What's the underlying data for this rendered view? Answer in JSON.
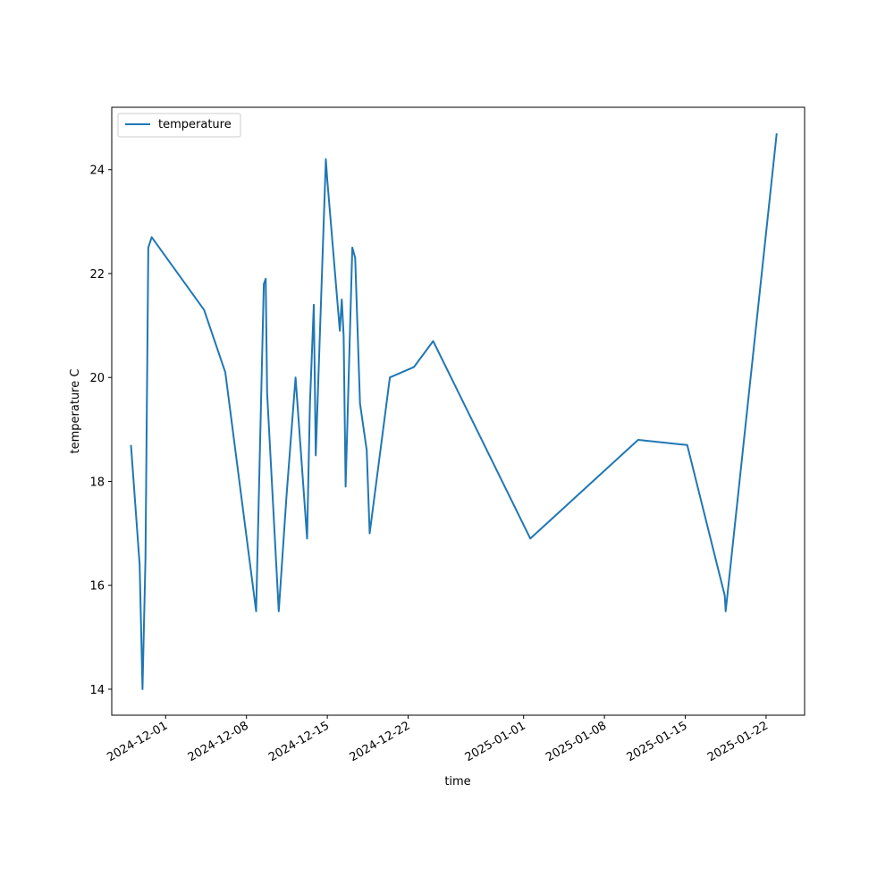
{
  "chart_data": {
    "type": "line",
    "xlabel": "time",
    "ylabel": "temperature C",
    "x_ticks": [
      "2024-12-01",
      "2024-12-08",
      "2024-12-15",
      "2024-12-22",
      "2025-01-01",
      "2025-01-08",
      "2025-01-15",
      "2025-01-22"
    ],
    "y_ticks": [
      14,
      16,
      18,
      20,
      22,
      24
    ],
    "xlim": [
      "2024-11-26T08:00",
      "2025-01-25T08:00"
    ],
    "ylim": [
      13.5,
      25.2
    ],
    "grid": false,
    "legend": {
      "position": "upper-left",
      "entries": [
        "temperature"
      ]
    },
    "series": [
      {
        "name": "temperature",
        "color": "#1f77b4",
        "points": [
          {
            "x": "2024-11-28T00:00",
            "y": 18.7
          },
          {
            "x": "2024-11-28T18:00",
            "y": 16.4
          },
          {
            "x": "2024-11-29T00:00",
            "y": 14.0
          },
          {
            "x": "2024-11-29T06:00",
            "y": 16.5
          },
          {
            "x": "2024-11-29T12:00",
            "y": 22.5
          },
          {
            "x": "2024-11-29T19:00",
            "y": 22.7
          },
          {
            "x": "2024-12-04T08:00",
            "y": 21.3
          },
          {
            "x": "2024-12-06T04:00",
            "y": 20.1
          },
          {
            "x": "2024-12-08T20:00",
            "y": 15.5
          },
          {
            "x": "2024-12-09T12:00",
            "y": 21.8
          },
          {
            "x": "2024-12-09T16:00",
            "y": 21.9
          },
          {
            "x": "2024-12-09T19:00",
            "y": 19.7
          },
          {
            "x": "2024-12-10T19:00",
            "y": 15.5
          },
          {
            "x": "2024-12-11T11:00",
            "y": 17.7
          },
          {
            "x": "2024-12-12T06:00",
            "y": 20.0
          },
          {
            "x": "2024-12-13T06:00",
            "y": 16.9
          },
          {
            "x": "2024-12-13T12:00",
            "y": 19.5
          },
          {
            "x": "2024-12-13T20:00",
            "y": 21.4
          },
          {
            "x": "2024-12-14T00:00",
            "y": 18.5
          },
          {
            "x": "2024-12-14T21:00",
            "y": 24.2
          },
          {
            "x": "2024-12-15T00:00",
            "y": 23.8
          },
          {
            "x": "2024-12-16T02:00",
            "y": 20.9
          },
          {
            "x": "2024-12-16T06:00",
            "y": 21.5
          },
          {
            "x": "2024-12-16T10:00",
            "y": 20.8
          },
          {
            "x": "2024-12-16T14:00",
            "y": 17.9
          },
          {
            "x": "2024-12-17T04:00",
            "y": 22.5
          },
          {
            "x": "2024-12-17T10:00",
            "y": 22.3
          },
          {
            "x": "2024-12-17T20:00",
            "y": 19.5
          },
          {
            "x": "2024-12-18T10:00",
            "y": 18.6
          },
          {
            "x": "2024-12-18T16:00",
            "y": 17.0
          },
          {
            "x": "2024-12-20T10:00",
            "y": 20.0
          },
          {
            "x": "2024-12-22T12:00",
            "y": 20.2
          },
          {
            "x": "2024-12-24T04:00",
            "y": 20.7
          },
          {
            "x": "2025-01-01T14:00",
            "y": 16.9
          },
          {
            "x": "2025-01-10T22:00",
            "y": 18.8
          },
          {
            "x": "2025-01-15T04:00",
            "y": 18.7
          },
          {
            "x": "2025-01-18T10:00",
            "y": 15.8
          },
          {
            "x": "2025-01-18T12:00",
            "y": 15.5
          },
          {
            "x": "2025-01-22T22:00",
            "y": 24.7
          }
        ]
      }
    ]
  }
}
